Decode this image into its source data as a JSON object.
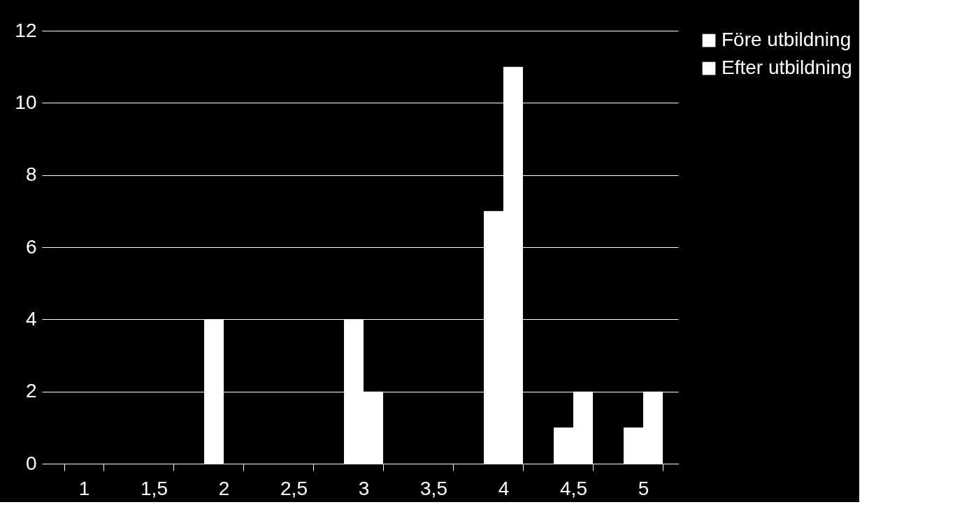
{
  "chart_data": {
    "type": "bar",
    "categories": [
      "1",
      "1,5",
      "2",
      "2,5",
      "3",
      "3,5",
      "4",
      "4,5",
      "5"
    ],
    "series": [
      {
        "name": "Före utbildning",
        "color": "#ffffff",
        "values": [
          0,
          0,
          4,
          0,
          4,
          0,
          7,
          1,
          1
        ]
      },
      {
        "name": "Efter utbildning",
        "color": "#ffffff",
        "values": [
          0,
          0,
          0,
          0,
          2,
          0,
          11,
          2,
          2
        ]
      }
    ],
    "ylim": [
      0,
      12
    ],
    "yticks": [
      0,
      2,
      4,
      6,
      8,
      10,
      12
    ],
    "grid": "y",
    "legend": "right"
  }
}
